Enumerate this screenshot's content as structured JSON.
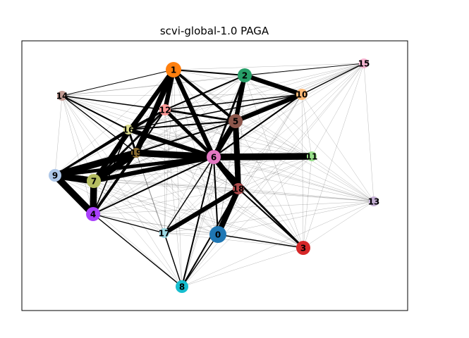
{
  "title": "scvi-global-1.0 PAGA",
  "chart_data": {
    "type": "graph",
    "layout": "force-directed",
    "axes_frame": true,
    "ticks": false,
    "nodes": [
      {
        "id": "0",
        "color": "#1f77b4"
      },
      {
        "id": "1",
        "color": "#ff7f0e"
      },
      {
        "id": "2",
        "color": "#279e68"
      },
      {
        "id": "3",
        "color": "#d62728"
      },
      {
        "id": "4",
        "color": "#aa40fc"
      },
      {
        "id": "5",
        "color": "#8c564b"
      },
      {
        "id": "6",
        "color": "#e377c2"
      },
      {
        "id": "7",
        "color": "#b5bd61"
      },
      {
        "id": "8",
        "color": "#17becf"
      },
      {
        "id": "9",
        "color": "#aec7e8"
      },
      {
        "id": "10",
        "color": "#ffbb78"
      },
      {
        "id": "11",
        "color": "#98df8a"
      },
      {
        "id": "12",
        "color": "#ff9896"
      },
      {
        "id": "13",
        "color": "#c5b0d5"
      },
      {
        "id": "14",
        "color": "#c49c94"
      },
      {
        "id": "15",
        "color": "#f7b6d2"
      },
      {
        "id": "16",
        "color": "#dbdb8d"
      },
      {
        "id": "17",
        "color": "#9edae5"
      },
      {
        "id": "18",
        "color": "#ad494a"
      },
      {
        "id": "19",
        "color": "#8c6d31"
      }
    ],
    "edges": [
      [
        "9",
        "7",
        1.0
      ],
      [
        "9",
        "4",
        1.0
      ],
      [
        "9",
        "19",
        1.0
      ],
      [
        "9",
        "6",
        0.7
      ],
      [
        "9",
        "16",
        0.5
      ],
      [
        "9",
        "12",
        0.4
      ],
      [
        "7",
        "4",
        1.0
      ],
      [
        "7",
        "19",
        1.0
      ],
      [
        "7",
        "6",
        0.8
      ],
      [
        "7",
        "1",
        0.8
      ],
      [
        "7",
        "16",
        0.6
      ],
      [
        "7",
        "12",
        0.5
      ],
      [
        "4",
        "19",
        0.6
      ],
      [
        "4",
        "6",
        0.4
      ],
      [
        "4",
        "17",
        0.3
      ],
      [
        "4",
        "8",
        0.3
      ],
      [
        "4",
        "16",
        0.3
      ],
      [
        "19",
        "6",
        1.0
      ],
      [
        "19",
        "1",
        0.9
      ],
      [
        "19",
        "16",
        0.5
      ],
      [
        "19",
        "12",
        0.4
      ],
      [
        "19",
        "5",
        0.4
      ],
      [
        "6",
        "11",
        1.0
      ],
      [
        "6",
        "18",
        0.9
      ],
      [
        "6",
        "5",
        0.9
      ],
      [
        "6",
        "1",
        0.8
      ],
      [
        "6",
        "16",
        0.8
      ],
      [
        "6",
        "12",
        0.7
      ],
      [
        "6",
        "3",
        0.5
      ],
      [
        "6",
        "0",
        0.4
      ],
      [
        "6",
        "8",
        0.4
      ],
      [
        "6",
        "17",
        0.3
      ],
      [
        "6",
        "2",
        0.5
      ],
      [
        "6",
        "10",
        0.4
      ],
      [
        "18",
        "0",
        0.9
      ],
      [
        "18",
        "5",
        0.9
      ],
      [
        "18",
        "17",
        0.8
      ],
      [
        "18",
        "3",
        0.4
      ],
      [
        "18",
        "8",
        0.4
      ],
      [
        "5",
        "2",
        0.8
      ],
      [
        "5",
        "10",
        0.8
      ],
      [
        "5",
        "1",
        0.6
      ],
      [
        "5",
        "12",
        0.5
      ],
      [
        "5",
        "16",
        0.4
      ],
      [
        "5",
        "18",
        0.9
      ],
      [
        "1",
        "12",
        0.8
      ],
      [
        "1",
        "2",
        0.4
      ],
      [
        "1",
        "16",
        0.5
      ],
      [
        "1",
        "14",
        0.2
      ],
      [
        "2",
        "10",
        0.8
      ],
      [
        "2",
        "12",
        0.4
      ],
      [
        "2",
        "15",
        0.2
      ],
      [
        "10",
        "15",
        0.3
      ],
      [
        "10",
        "12",
        0.3
      ],
      [
        "10",
        "16",
        0.3
      ],
      [
        "14",
        "12",
        0.3
      ],
      [
        "14",
        "16",
        0.4
      ],
      [
        "14",
        "19",
        0.3
      ],
      [
        "12",
        "16",
        0.5
      ],
      [
        "16",
        "4",
        0.3
      ],
      [
        "8",
        "17",
        0.3
      ],
      [
        "8",
        "0",
        0.3
      ],
      [
        "0",
        "3",
        0.3
      ]
    ]
  }
}
